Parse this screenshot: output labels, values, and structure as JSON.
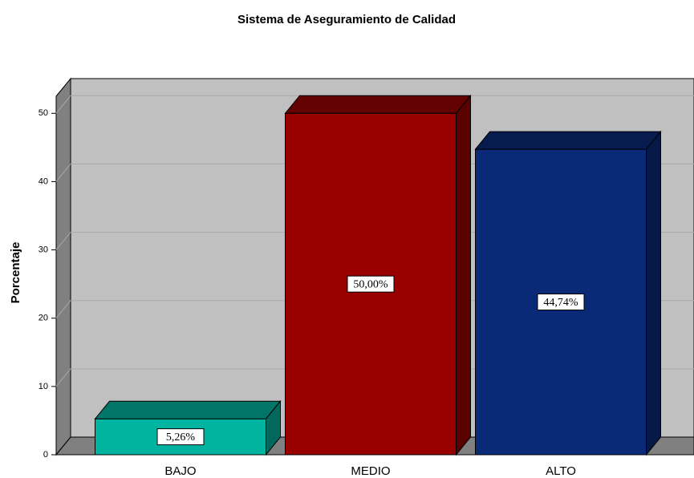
{
  "chart_data": {
    "type": "bar3d",
    "title": "Sistema de Aseguramiento de Calidad",
    "y_label": "Porcentaje",
    "categories": [
      "BAJO",
      "MEDIO",
      "ALTO"
    ],
    "values": [
      5.26,
      50.0,
      44.74
    ],
    "value_labels": [
      "5,26%",
      "50,00%",
      "44,74%"
    ],
    "colors": [
      "#00b4a0",
      "#990000",
      "#0a2a78"
    ],
    "ylim": [
      0,
      52.5
    ],
    "yticks": [
      0,
      10,
      20,
      30,
      40,
      50
    ],
    "grid": true
  }
}
